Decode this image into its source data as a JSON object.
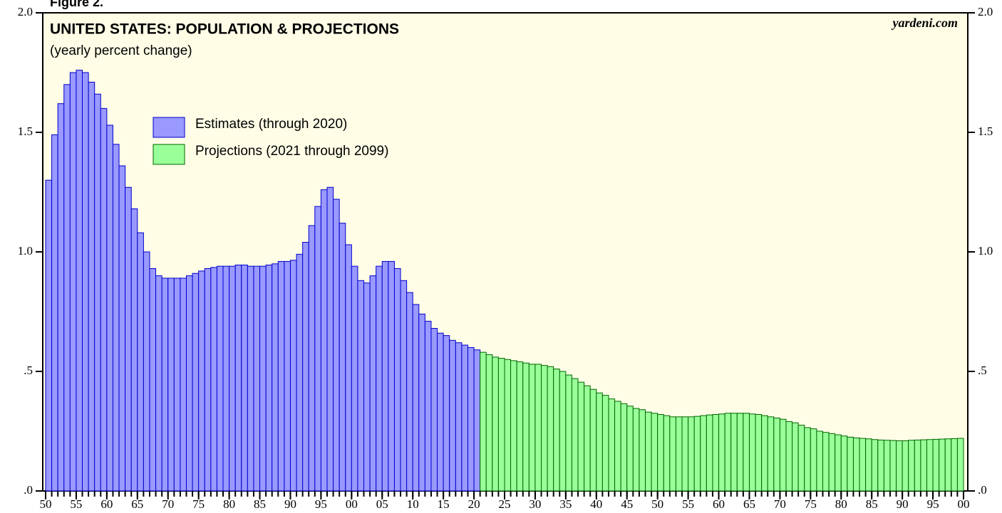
{
  "chart_data": {
    "type": "bar",
    "figure_label": "Figure 2.",
    "title": "UNITED STATES: POPULATION & PROJECTIONS",
    "subtitle": "(yearly percent change)",
    "source": "yardeni.com",
    "background": "#fffde6",
    "xlim": [
      1950,
      2100
    ],
    "xticks": [
      {
        "value": 1950,
        "label": "50"
      },
      {
        "value": 1955,
        "label": "55"
      },
      {
        "value": 1960,
        "label": "60"
      },
      {
        "value": 1965,
        "label": "65"
      },
      {
        "value": 1970,
        "label": "70"
      },
      {
        "value": 1975,
        "label": "75"
      },
      {
        "value": 1980,
        "label": "80"
      },
      {
        "value": 1985,
        "label": "85"
      },
      {
        "value": 1990,
        "label": "90"
      },
      {
        "value": 1995,
        "label": "95"
      },
      {
        "value": 2000,
        "label": "00"
      },
      {
        "value": 2005,
        "label": "05"
      },
      {
        "value": 2010,
        "label": "10"
      },
      {
        "value": 2015,
        "label": "15"
      },
      {
        "value": 2020,
        "label": "20"
      },
      {
        "value": 2025,
        "label": "25"
      },
      {
        "value": 2030,
        "label": "30"
      },
      {
        "value": 2035,
        "label": "35"
      },
      {
        "value": 2040,
        "label": "40"
      },
      {
        "value": 2045,
        "label": "45"
      },
      {
        "value": 2050,
        "label": "50"
      },
      {
        "value": 2055,
        "label": "55"
      },
      {
        "value": 2060,
        "label": "60"
      },
      {
        "value": 2065,
        "label": "65"
      },
      {
        "value": 2070,
        "label": "70"
      },
      {
        "value": 2075,
        "label": "75"
      },
      {
        "value": 2080,
        "label": "80"
      },
      {
        "value": 2085,
        "label": "85"
      },
      {
        "value": 2090,
        "label": "90"
      },
      {
        "value": 2095,
        "label": "95"
      },
      {
        "value": 2100,
        "label": "00"
      }
    ],
    "ylim": [
      0,
      2
    ],
    "yticks": [
      {
        "value": 0,
        "label": ".0"
      },
      {
        "value": 0.5,
        "label": ".5"
      },
      {
        "value": 1,
        "label": "1.0"
      },
      {
        "value": 1.5,
        "label": "1.5"
      },
      {
        "value": 2,
        "label": "2.0"
      }
    ],
    "series": [
      {
        "name": "Estimates (through 2020)",
        "color": "#9999ff",
        "edge": "#0000cc",
        "x": [
          1950,
          1951,
          1952,
          1953,
          1954,
          1955,
          1956,
          1957,
          1958,
          1959,
          1960,
          1961,
          1962,
          1963,
          1964,
          1965,
          1966,
          1967,
          1968,
          1969,
          1970,
          1971,
          1972,
          1973,
          1974,
          1975,
          1976,
          1977,
          1978,
          1979,
          1980,
          1981,
          1982,
          1983,
          1984,
          1985,
          1986,
          1987,
          1988,
          1989,
          1990,
          1991,
          1992,
          1993,
          1994,
          1995,
          1996,
          1997,
          1998,
          1999,
          2000,
          2001,
          2002,
          2003,
          2004,
          2005,
          2006,
          2007,
          2008,
          2009,
          2010,
          2011,
          2012,
          2013,
          2014,
          2015,
          2016,
          2017,
          2018,
          2019,
          2020
        ],
        "values": [
          1.3,
          1.49,
          1.62,
          1.7,
          1.75,
          1.76,
          1.75,
          1.71,
          1.66,
          1.6,
          1.53,
          1.45,
          1.36,
          1.27,
          1.18,
          1.08,
          1.0,
          0.93,
          0.9,
          0.89,
          0.89,
          0.89,
          0.89,
          0.9,
          0.91,
          0.92,
          0.93,
          0.935,
          0.94,
          0.94,
          0.94,
          0.945,
          0.945,
          0.94,
          0.94,
          0.94,
          0.945,
          0.95,
          0.96,
          0.96,
          0.965,
          0.99,
          1.04,
          1.11,
          1.19,
          1.26,
          1.27,
          1.22,
          1.12,
          1.03,
          0.94,
          0.88,
          0.87,
          0.9,
          0.94,
          0.96,
          0.96,
          0.93,
          0.88,
          0.83,
          0.78,
          0.74,
          0.71,
          0.68,
          0.66,
          0.65,
          0.63,
          0.62,
          0.61,
          0.6,
          0.59
        ]
      },
      {
        "name": "Projections (2021 through 2099)",
        "color": "#99ff99",
        "edge": "#006600",
        "x": [
          2021,
          2022,
          2023,
          2024,
          2025,
          2026,
          2027,
          2028,
          2029,
          2030,
          2031,
          2032,
          2033,
          2034,
          2035,
          2036,
          2037,
          2038,
          2039,
          2040,
          2041,
          2042,
          2043,
          2044,
          2045,
          2046,
          2047,
          2048,
          2049,
          2050,
          2051,
          2052,
          2053,
          2054,
          2055,
          2056,
          2057,
          2058,
          2059,
          2060,
          2061,
          2062,
          2063,
          2064,
          2065,
          2066,
          2067,
          2068,
          2069,
          2070,
          2071,
          2072,
          2073,
          2074,
          2075,
          2076,
          2077,
          2078,
          2079,
          2080,
          2081,
          2082,
          2083,
          2084,
          2085,
          2086,
          2087,
          2088,
          2089,
          2090,
          2091,
          2092,
          2093,
          2094,
          2095,
          2096,
          2097,
          2098,
          2099
        ],
        "values": [
          0.58,
          0.57,
          0.56,
          0.555,
          0.55,
          0.545,
          0.54,
          0.535,
          0.53,
          0.53,
          0.525,
          0.52,
          0.51,
          0.5,
          0.485,
          0.47,
          0.455,
          0.44,
          0.425,
          0.41,
          0.4,
          0.385,
          0.375,
          0.365,
          0.355,
          0.345,
          0.34,
          0.33,
          0.325,
          0.32,
          0.315,
          0.31,
          0.31,
          0.31,
          0.31,
          0.312,
          0.315,
          0.318,
          0.32,
          0.322,
          0.325,
          0.325,
          0.325,
          0.325,
          0.322,
          0.32,
          0.315,
          0.31,
          0.305,
          0.3,
          0.29,
          0.285,
          0.275,
          0.265,
          0.26,
          0.25,
          0.245,
          0.24,
          0.235,
          0.23,
          0.225,
          0.222,
          0.22,
          0.218,
          0.215,
          0.213,
          0.212,
          0.211,
          0.21,
          0.21,
          0.212,
          0.213,
          0.214,
          0.215,
          0.216,
          0.217,
          0.218,
          0.219,
          0.22
        ]
      }
    ]
  }
}
